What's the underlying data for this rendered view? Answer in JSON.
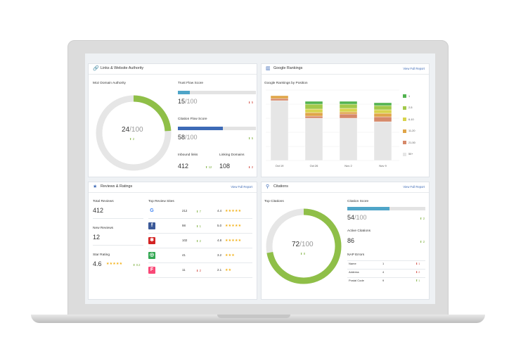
{
  "colors": {
    "accent": "#3d6ab6",
    "up": "#7aae3a",
    "down": "#d0453c",
    "donut": "#8fbf48",
    "track": "#e6e6e6"
  },
  "links": {
    "title": "Links & Website Authority",
    "moz_label": "Moz Domain Authority",
    "moz_value": "24",
    "moz_den": "/100",
    "moz_change": "2",
    "moz_fraction": 0.24,
    "trust_label": "Trust Flow Score",
    "trust_value": "15",
    "trust_den": "/100",
    "trust_change": "5",
    "trust_fraction": 0.15,
    "citation_label": "Citation Flow Score",
    "citation_value": "58",
    "citation_den": "/100",
    "citation_change": "5",
    "citation_fraction": 0.58,
    "inbound_label": "Inbound links",
    "inbound_value": "412",
    "inbound_change": "12",
    "linking_label": "Linking Domains",
    "linking_value": "108",
    "linking_change": "2"
  },
  "rankings": {
    "title": "Google Rankings",
    "link": "View Full Report",
    "subtitle": "Google Rankings by Position",
    "legend": [
      {
        "label": "1",
        "color": "#52b34f"
      },
      {
        "label": "2-5",
        "color": "#a3c94a"
      },
      {
        "label": "6-10",
        "color": "#d8d34d"
      },
      {
        "label": "11-20",
        "color": "#e0a548"
      },
      {
        "label": "21-50",
        "color": "#d6896a"
      },
      {
        "label": "50+",
        "color": "#e6e6e6"
      }
    ]
  },
  "chart_data": {
    "type": "bar",
    "stacked": true,
    "categories": [
      "Oct 19",
      "Oct 26",
      "Nov 2",
      "Nov 9"
    ],
    "series": [
      {
        "name": "1",
        "values": [
          0,
          4,
          4,
          4
        ]
      },
      {
        "name": "2-5",
        "values": [
          0,
          7,
          6,
          6
        ]
      },
      {
        "name": "6-10",
        "values": [
          0,
          5,
          5,
          5
        ]
      },
      {
        "name": "11-20",
        "values": [
          4,
          5,
          3,
          5
        ]
      },
      {
        "name": "21-50",
        "values": [
          3,
          3,
          6,
          7
        ]
      },
      {
        "name": "50+",
        "values": [
          85,
          60,
          60,
          55
        ]
      }
    ],
    "ylim": [
      0,
      100
    ],
    "grid": true
  },
  "reviews": {
    "title": "Reviews & Ratings",
    "link": "View Full Report",
    "total_label": "Total Reviews",
    "total_value": "412",
    "new_label": "New Reviews",
    "new_value": "12",
    "star_label": "Star Rating",
    "star_value": "4.6",
    "star_stars": "★★★★★",
    "star_change": "0.2",
    "sites_label": "Top Review Sites",
    "sites": [
      {
        "icon": "google-icon",
        "count": "212",
        "change": "7",
        "dir": "up",
        "rating": "4.4",
        "stars": "★★★★★",
        "color": "#fff"
      },
      {
        "icon": "facebook-icon",
        "count": "98",
        "change": "1",
        "dir": "up",
        "rating": "5.0",
        "stars": "★★★★★",
        "color": "#3b5998"
      },
      {
        "icon": "yelp-icon",
        "count": "102",
        "change": "2",
        "dir": "up",
        "rating": "4.8",
        "stars": "★★★★★",
        "color": "#d32323"
      },
      {
        "icon": "tripadvisor-icon",
        "count": "41",
        "change": "",
        "dir": "none",
        "rating": "3.2",
        "stars": "★★★",
        "color": "#34a853"
      },
      {
        "icon": "foursquare-icon",
        "count": "11",
        "change": "2",
        "dir": "down",
        "rating": "2.1",
        "stars": "★★",
        "color": "#f94877"
      }
    ]
  },
  "citations": {
    "title": "Citations",
    "link": "View Full Report",
    "top_label": "Top Citations",
    "top_value": "72",
    "top_den": "/100",
    "top_change": "8",
    "top_fraction": 0.72,
    "score_label": "Citation Score",
    "score_value": "54",
    "score_den": "/100",
    "score_change": "2",
    "score_fraction": 0.54,
    "active_label": "Active Citations",
    "active_value": "86",
    "active_change": "2",
    "nap_label": "NAP Errors",
    "nap": [
      {
        "name": "Name",
        "value": "1",
        "change": "1",
        "dir": "down"
      },
      {
        "name": "Address",
        "value": "4",
        "change": "2",
        "dir": "down"
      },
      {
        "name": "Postal Code",
        "value": "9",
        "change": "1",
        "dir": "up"
      }
    ]
  }
}
